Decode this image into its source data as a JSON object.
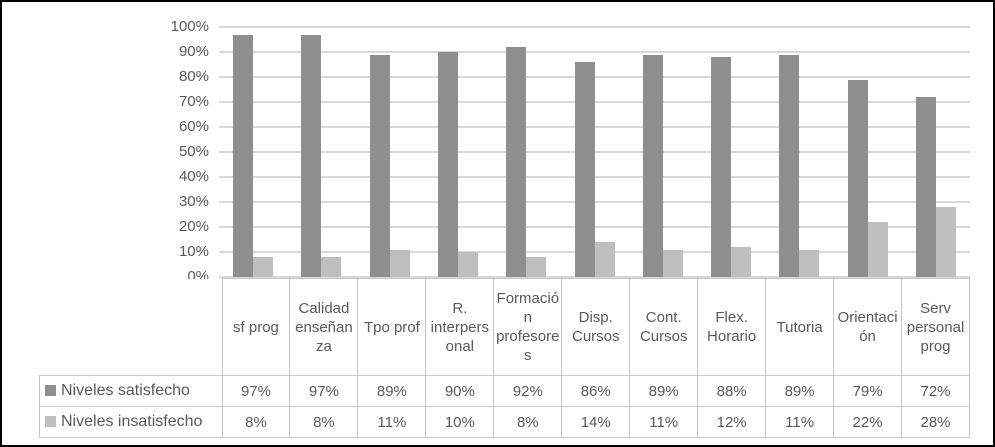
{
  "figure": {
    "kind": "clustered-bar-chart-with-data-table",
    "background": "#ffffff",
    "frame_border_color": "#000000",
    "gridline_color": "#d9d9d9",
    "table_border_color": "#c6c6c6",
    "text_color": "#595959"
  },
  "chart_data": {
    "type": "bar",
    "title": "",
    "xlabel": "",
    "ylabel": "",
    "ylim": [
      0,
      100
    ],
    "y_tick_step": 10,
    "y_ticks": [
      "0%",
      "10%",
      "20%",
      "30%",
      "40%",
      "50%",
      "60%",
      "70%",
      "80%",
      "90%",
      "100%"
    ],
    "grid": true,
    "legend_position": "data-table-row-labels",
    "value_format": "percent",
    "categories": [
      "sf prog",
      "Calidad enseñanza",
      "Tpo prof",
      "R. interpersonal",
      "Formación profesores",
      "Disp. Cursos",
      "Cont. Cursos",
      "Flex. Horario",
      "Tutoria",
      "Orientación",
      "Serv personal prog"
    ],
    "series": [
      {
        "name": "Niveles satisfecho",
        "color": "#8f8f8f",
        "values": [
          97,
          97,
          89,
          90,
          92,
          86,
          89,
          88,
          89,
          79,
          72
        ]
      },
      {
        "name": "Niveles insatisfecho",
        "color": "#bfbfbf",
        "values": [
          8,
          8,
          11,
          10,
          8,
          14,
          11,
          12,
          11,
          22,
          28
        ]
      }
    ]
  }
}
